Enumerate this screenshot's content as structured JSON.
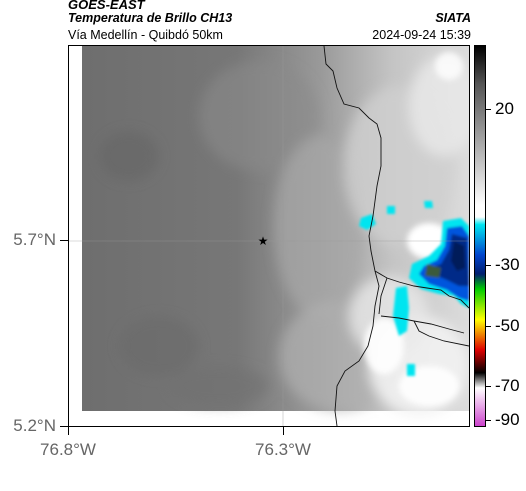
{
  "header": {
    "satellite": "GOES-EAST",
    "product": "Temperatura de Brillo CH13",
    "region": "Vía Medellín - Quibdó 50km",
    "organization": "SIATA",
    "datetime": "2024-09-24 15:39"
  },
  "map": {
    "lat_ticks": [
      {
        "value": 5.7,
        "label": "5.7°N"
      },
      {
        "value": 5.2,
        "label": "5.2°N"
      }
    ],
    "lon_ticks": [
      {
        "value": -76.8,
        "label": "76.8°W"
      },
      {
        "value": -76.3,
        "label": "76.3°W"
      }
    ],
    "lon_range": [
      -76.8,
      -76.19
    ],
    "lat_range": [
      5.2,
      5.98
    ],
    "marker": {
      "lat": 5.7,
      "lon": -76.32,
      "icon": "star-icon"
    },
    "gridlines": true
  },
  "colorbar": {
    "ticks": [
      {
        "value": 20,
        "label": "20"
      },
      {
        "value": -30,
        "label": "-30"
      },
      {
        "value": -50,
        "label": "-50"
      },
      {
        "value": -70,
        "label": "-70"
      },
      {
        "value": -90,
        "label": "-90"
      }
    ],
    "range": [
      -95,
      35
    ],
    "colors": {
      "warm": "#ffffff",
      "cold_gray": "#555555",
      "cyan": "#00e5f0",
      "blue": "#0044cc",
      "navy": "#001e6e",
      "green": "#00cc00",
      "yellow": "#ffff00",
      "red": "#dd0000",
      "black": "#000000",
      "magenta": "#cc44cc"
    }
  }
}
